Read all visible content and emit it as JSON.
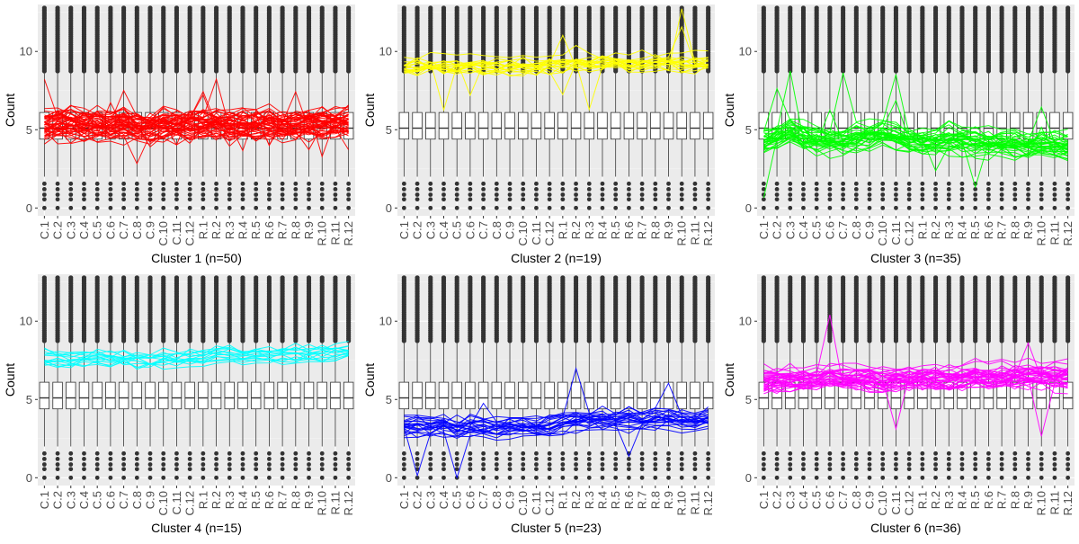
{
  "chart_data": [
    {
      "type": "boxplot_with_lines",
      "title": "Cluster 1 (n=50)",
      "xlabel": "Cluster 1 (n=50)",
      "ylabel": "Count",
      "ylim": [
        -0.5,
        13
      ],
      "yticks": [
        0,
        5,
        10
      ],
      "categories": [
        "C.1",
        "C.2",
        "C.3",
        "C.4",
        "C.5",
        "C.6",
        "C.7",
        "C.8",
        "C.9",
        "C.10",
        "C.11",
        "C.12",
        "R.1",
        "R.2",
        "R.3",
        "R.4",
        "R.5",
        "R.6",
        "R.7",
        "R.8",
        "R.9",
        "R.10",
        "R.11",
        "R.12"
      ],
      "boxplot": {
        "q1": 4.4,
        "median": 5.1,
        "q3": 6.1,
        "whisker_low": 2.0,
        "whisker_high": 8.6,
        "outlier_low_min": 0,
        "outlier_high_max": 12.9
      },
      "line_color": "#ff0000",
      "series_count": 50,
      "mean_profile": [
        5.2,
        5.2,
        5.3,
        5.2,
        5.2,
        5.1,
        5.2,
        5.1,
        5.0,
        5.3,
        5.2,
        5.2,
        5.2,
        5.3,
        5.2,
        5.2,
        5.2,
        5.3,
        5.2,
        5.2,
        5.3,
        5.3,
        5.3,
        5.4
      ],
      "spread": 0.6
    },
    {
      "type": "boxplot_with_lines",
      "title": "Cluster 2 (n=19)",
      "xlabel": "Cluster 2 (n=19)",
      "ylabel": "Count",
      "ylim": [
        -0.5,
        13
      ],
      "yticks": [
        0,
        5,
        10
      ],
      "categories": [
        "C.1",
        "C.2",
        "C.3",
        "C.4",
        "C.5",
        "C.6",
        "C.7",
        "C.8",
        "C.9",
        "C.10",
        "C.11",
        "C.12",
        "R.1",
        "R.2",
        "R.3",
        "R.4",
        "R.5",
        "R.6",
        "R.7",
        "R.8",
        "R.9",
        "R.10",
        "R.11",
        "R.12"
      ],
      "boxplot": {
        "q1": 4.4,
        "median": 5.1,
        "q3": 6.1,
        "whisker_low": 2.0,
        "whisker_high": 8.6,
        "outlier_low_min": 0,
        "outlier_high_max": 12.9
      },
      "line_color": "#ffff00",
      "series_count": 19,
      "mean_profile": [
        9.0,
        9.0,
        9.1,
        9.0,
        9.0,
        9.1,
        9.0,
        9.0,
        9.0,
        9.1,
        9.0,
        9.1,
        9.2,
        9.3,
        9.2,
        9.2,
        9.3,
        9.2,
        9.2,
        9.3,
        9.3,
        9.2,
        9.2,
        9.3
      ],
      "spread": 0.4
    },
    {
      "type": "boxplot_with_lines",
      "title": "Cluster 3 (n=35)",
      "xlabel": "Cluster 3 (n=35)",
      "ylabel": "Count",
      "ylim": [
        -0.5,
        13
      ],
      "yticks": [
        0,
        5,
        10
      ],
      "categories": [
        "C.1",
        "C.2",
        "C.3",
        "C.4",
        "C.5",
        "C.6",
        "C.7",
        "C.8",
        "C.9",
        "C.10",
        "C.11",
        "C.12",
        "R.1",
        "R.2",
        "R.3",
        "R.4",
        "R.5",
        "R.6",
        "R.7",
        "R.8",
        "R.9",
        "R.10",
        "R.11",
        "R.12"
      ],
      "boxplot": {
        "q1": 4.4,
        "median": 5.1,
        "q3": 6.1,
        "whisker_low": 2.0,
        "whisker_high": 8.6,
        "outlier_low_min": 0,
        "outlier_high_max": 12.9
      },
      "line_color": "#00ff00",
      "series_count": 35,
      "mean_profile": [
        4.3,
        4.6,
        4.9,
        4.6,
        4.4,
        4.3,
        4.4,
        4.5,
        4.7,
        4.8,
        4.6,
        4.3,
        4.2,
        4.3,
        4.4,
        4.3,
        4.2,
        4.2,
        4.1,
        4.1,
        4.0,
        4.0,
        4.0,
        3.9
      ],
      "spread": 0.5
    },
    {
      "type": "boxplot_with_lines",
      "title": "Cluster 4 (n=15)",
      "xlabel": "Cluster 4 (n=15)",
      "ylabel": "Count",
      "ylim": [
        -0.5,
        13
      ],
      "yticks": [
        0,
        5,
        10
      ],
      "categories": [
        "C.1",
        "C.2",
        "C.3",
        "C.4",
        "C.5",
        "C.6",
        "C.7",
        "C.8",
        "C.9",
        "C.10",
        "C.11",
        "C.12",
        "R.1",
        "R.2",
        "R.3",
        "R.4",
        "R.5",
        "R.6",
        "R.7",
        "R.8",
        "R.9",
        "R.10",
        "R.11",
        "R.12"
      ],
      "boxplot": {
        "q1": 4.4,
        "median": 5.1,
        "q3": 6.1,
        "whisker_low": 2.0,
        "whisker_high": 8.6,
        "outlier_low_min": 0,
        "outlier_high_max": 12.9
      },
      "line_color": "#00ffff",
      "series_count": 15,
      "mean_profile": [
        7.6,
        7.6,
        7.5,
        7.6,
        7.7,
        7.6,
        7.6,
        7.5,
        7.5,
        7.6,
        7.6,
        7.6,
        7.7,
        7.9,
        7.8,
        7.8,
        7.9,
        7.8,
        7.8,
        7.9,
        7.9,
        7.9,
        8.0,
        8.1
      ],
      "spread": 0.35
    },
    {
      "type": "boxplot_with_lines",
      "title": "Cluster 5 (n=23)",
      "xlabel": "Cluster 5 (n=23)",
      "ylabel": "Count",
      "ylim": [
        -0.5,
        13
      ],
      "yticks": [
        0,
        5,
        10
      ],
      "categories": [
        "C.1",
        "C.2",
        "C.3",
        "C.4",
        "C.5",
        "C.6",
        "C.7",
        "C.8",
        "C.9",
        "C.10",
        "C.11",
        "C.12",
        "R.1",
        "R.2",
        "R.3",
        "R.4",
        "R.5",
        "R.6",
        "R.7",
        "R.8",
        "R.9",
        "R.10",
        "R.11",
        "R.12"
      ],
      "boxplot": {
        "q1": 4.4,
        "median": 5.1,
        "q3": 6.1,
        "whisker_low": 2.0,
        "whisker_high": 8.6,
        "outlier_low_min": 0,
        "outlier_high_max": 12.9
      },
      "line_color": "#0000ff",
      "series_count": 23,
      "mean_profile": [
        3.4,
        3.4,
        3.3,
        3.4,
        3.2,
        3.3,
        3.3,
        3.2,
        3.3,
        3.3,
        3.3,
        3.4,
        3.6,
        3.7,
        3.7,
        3.8,
        3.7,
        3.8,
        3.7,
        3.8,
        3.8,
        3.7,
        3.7,
        3.8
      ],
      "spread": 0.4
    },
    {
      "type": "boxplot_with_lines",
      "title": "Cluster 6 (n=36)",
      "xlabel": "Cluster 6 (n=36)",
      "ylabel": "Count",
      "ylim": [
        -0.5,
        13
      ],
      "yticks": [
        0,
        5,
        10
      ],
      "categories": [
        "C.1",
        "C.2",
        "C.3",
        "C.4",
        "C.5",
        "C.6",
        "C.7",
        "C.8",
        "C.9",
        "C.10",
        "C.11",
        "C.12",
        "R.1",
        "R.2",
        "R.3",
        "R.4",
        "R.5",
        "R.6",
        "R.7",
        "R.8",
        "R.9",
        "R.10",
        "R.11",
        "R.12"
      ],
      "boxplot": {
        "q1": 4.4,
        "median": 5.1,
        "q3": 6.1,
        "whisker_low": 2.0,
        "whisker_high": 8.6,
        "outlier_low_min": 0,
        "outlier_high_max": 12.9
      },
      "line_color": "#ff00ff",
      "series_count": 36,
      "mean_profile": [
        6.3,
        6.3,
        6.4,
        6.3,
        6.4,
        6.6,
        6.4,
        6.5,
        6.4,
        6.3,
        6.4,
        6.4,
        6.5,
        6.5,
        6.4,
        6.5,
        6.6,
        6.5,
        6.5,
        6.6,
        6.6,
        6.6,
        6.5,
        6.6
      ],
      "spread": 0.45
    }
  ]
}
